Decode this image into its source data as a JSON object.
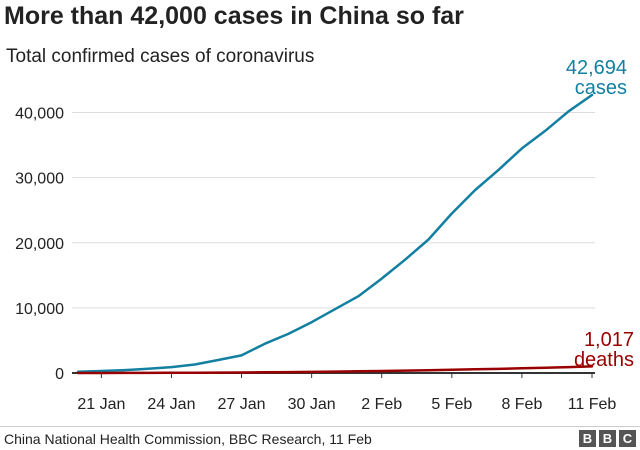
{
  "title": "More than 42,000 cases in China so far",
  "subtitle": "Total confirmed cases of coronavirus",
  "source": "China National Health Commission, BBC Research, 11 Feb",
  "logo": [
    "B",
    "B",
    "C"
  ],
  "labels": {
    "cases_value": "42,694",
    "cases_word": "cases",
    "deaths_value": "1,017",
    "deaths_word": "deaths"
  },
  "chart_data": {
    "type": "line",
    "x": [
      "20 Jan",
      "21 Jan",
      "22 Jan",
      "23 Jan",
      "24 Jan",
      "25 Jan",
      "26 Jan",
      "27 Jan",
      "28 Jan",
      "29 Jan",
      "30 Jan",
      "31 Jan",
      "1 Feb",
      "2 Feb",
      "3 Feb",
      "4 Feb",
      "5 Feb",
      "6 Feb",
      "7 Feb",
      "8 Feb",
      "9 Feb",
      "10 Feb",
      "11 Feb"
    ],
    "xticks": [
      "21 Jan",
      "24 Jan",
      "27 Jan",
      "30 Jan",
      "2 Feb",
      "5 Feb",
      "8 Feb",
      "11 Feb"
    ],
    "series": [
      {
        "name": "cases",
        "color": "#1380a1",
        "values": [
          200,
          300,
          450,
          650,
          900,
          1300,
          2000,
          2700,
          4500,
          6000,
          7800,
          9800,
          11800,
          14500,
          17400,
          20500,
          24500,
          28100,
          31200,
          34500,
          37200,
          40200,
          42694
        ]
      },
      {
        "name": "deaths",
        "color": "#990000",
        "values": [
          0,
          6,
          9,
          17,
          25,
          41,
          56,
          80,
          106,
          132,
          170,
          213,
          259,
          304,
          361,
          425,
          490,
          563,
          636,
          722,
          811,
          908,
          1017
        ]
      }
    ],
    "ylim": [
      0,
      45000
    ],
    "yticks": [
      0,
      10000,
      20000,
      30000,
      40000
    ],
    "ytick_labels": [
      "0",
      "10,000",
      "20,000",
      "30,000",
      "40,000"
    ],
    "grid": true,
    "xlabel": "",
    "ylabel": ""
  }
}
